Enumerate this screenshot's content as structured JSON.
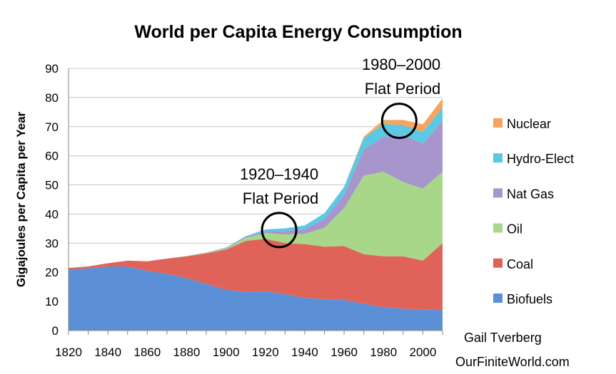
{
  "chart_data": {
    "type": "area",
    "stacked": true,
    "title": "World per Capita Energy Consumption",
    "xlabel": "",
    "ylabel": "Gigajoules per Capita per Year",
    "xlim": [
      1820,
      2010
    ],
    "ylim": [
      0,
      90
    ],
    "x_ticks": [
      1820,
      1840,
      1860,
      1880,
      1900,
      1920,
      1940,
      1960,
      1980,
      2000
    ],
    "y_ticks": [
      0,
      10,
      20,
      30,
      40,
      50,
      60,
      70,
      80,
      90
    ],
    "grid": true,
    "legend_position": "right",
    "x": [
      1820,
      1830,
      1840,
      1850,
      1860,
      1870,
      1880,
      1890,
      1900,
      1910,
      1920,
      1930,
      1940,
      1950,
      1960,
      1970,
      1980,
      1990,
      2000,
      2010
    ],
    "series": [
      {
        "name": "Biofuels",
        "color": "#5b8fd6",
        "values": [
          21,
          21.3,
          22,
          22,
          20.5,
          19.5,
          18,
          16,
          14,
          13.3,
          13.5,
          12.5,
          11.2,
          10.8,
          10.5,
          9.2,
          8,
          7.5,
          7.2,
          7
        ]
      },
      {
        "name": "Coal",
        "color": "#e0635a",
        "values": [
          0.5,
          0.7,
          1.1,
          2,
          3.3,
          5.2,
          7.5,
          10.5,
          13.8,
          17.5,
          18,
          17.5,
          18.5,
          18,
          18.5,
          17,
          17.5,
          18,
          16.8,
          23
        ]
      },
      {
        "name": "Oil",
        "color": "#a9d78a",
        "values": [
          0,
          0,
          0,
          0,
          0,
          0,
          0.1,
          0.2,
          0.4,
          1,
          2,
          3,
          3.5,
          6.5,
          13,
          27,
          29,
          25.5,
          24.7,
          24.5
        ]
      },
      {
        "name": "Nat Gas",
        "color": "#a796cc",
        "values": [
          0,
          0,
          0,
          0,
          0,
          0,
          0,
          0.1,
          0.2,
          0.3,
          0.6,
          1.2,
          1.6,
          3,
          4.5,
          9,
          12,
          16,
          15.5,
          17.5
        ]
      },
      {
        "name": "Hydro-Elect",
        "color": "#5bc8e4",
        "values": [
          0,
          0,
          0,
          0,
          0,
          0,
          0,
          0,
          0.1,
          0.3,
          0.6,
          0.9,
          1.3,
          2,
          2.8,
          3.8,
          4.5,
          3.5,
          4,
          4.5
        ]
      },
      {
        "name": "Nuclear",
        "color": "#f7a55c",
        "values": [
          0,
          0,
          0,
          0,
          0,
          0,
          0,
          0,
          0,
          0,
          0,
          0,
          0,
          0,
          0,
          0.6,
          1.3,
          1.8,
          2.6,
          3.2
        ]
      }
    ],
    "annotations": [
      {
        "line1": "1920–1940",
        "line2": "Flat Period",
        "circle_x": 1927,
        "circle_y": 34.5
      },
      {
        "line1": "1980–2000",
        "line2": "Flat Period",
        "circle_x": 1988,
        "circle_y": 72
      }
    ]
  },
  "credit": {
    "author": "Gail Tverberg",
    "site": "OurFiniteWorld.com"
  }
}
